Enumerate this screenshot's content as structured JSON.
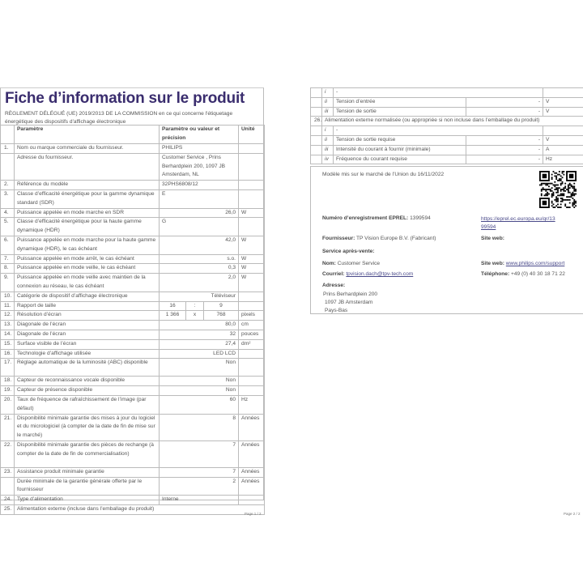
{
  "page1": {
    "title": "Fiche d’information sur le produit",
    "subtitle": "RÈGLEMENT DÉLÉGUÉ (UE) 2019/2013 DE LA COMMISSION en ce qui concerne l'étiquetage énergétique des dispositifs d'affichage électronique",
    "header": {
      "param": "Paramètre",
      "value": "Paramètre ou valeur et précision",
      "unit": "Unité"
    },
    "rows": [
      {
        "n": "1.",
        "p": "Nom ou marque commerciale du fournisseur.",
        "v": "PHILIPS",
        "u": "",
        "align": "l",
        "lines": 1
      },
      {
        "n": "",
        "p": "Adresse du fournisseur.",
        "v": "Customer Service , Prins Berhardplein 200, 1097 JB Amsterdam, NL",
        "u": "",
        "align": "l",
        "lines": 3
      },
      {
        "n": "2.",
        "p": "Référence du modèle",
        "v": "32PHS6808/12",
        "u": "",
        "align": "l",
        "lines": 1
      },
      {
        "n": "3.",
        "p": "Classe d’efficacité énergétique pour la gamme dynamique standard (SDR)",
        "v": "E",
        "u": "",
        "align": "l",
        "lines": 2
      },
      {
        "n": "4.",
        "p": "Puissance appelée en mode marche en SDR",
        "v": "26,0",
        "u": "W",
        "align": "r",
        "lines": 1
      },
      {
        "n": "5.",
        "p": "Classe d’efficacité énergétique pour la haute gamme dynamique (HDR)",
        "v": "G",
        "u": "",
        "align": "l",
        "lines": 2
      },
      {
        "n": "6.",
        "p": "Puissance appelée en mode marche pour la haute gamme dynamique (HDR), le cas échéant",
        "v": "42,0",
        "u": "W",
        "align": "r",
        "lines": 2
      },
      {
        "n": "7.",
        "p": "Puissance appelée en mode arrêt, le cas échéant",
        "v": "s.o.",
        "u": "W",
        "align": "r",
        "lines": 1
      },
      {
        "n": "8.",
        "p": "Puissance appelée en mode veille, le cas échéant",
        "v": "0,3",
        "u": "W",
        "align": "r",
        "lines": 1
      },
      {
        "n": "9.",
        "p": "Puissance appelée en mode veille avec maintien de la connexion au réseau, le cas échéant",
        "v": "2,0",
        "u": "W",
        "align": "r",
        "lines": 2
      },
      {
        "n": "10.",
        "p": "Catégorie de dispositif d’affichage électronique",
        "v": "Téléviseur",
        "u": "",
        "align": "r",
        "lines": 1
      },
      {
        "n": "11.",
        "p": "Rapport de taille",
        "v": [
          "16",
          ":",
          "9"
        ],
        "u": "",
        "align": "c",
        "lines": 1
      },
      {
        "n": "12.",
        "p": "Résolution d’écran",
        "v": [
          "1 366",
          "x",
          "768"
        ],
        "u": "pixels",
        "align": "c",
        "lines": 1
      },
      {
        "n": "13.",
        "p": "Diagonale de l’écran",
        "v": "80,0",
        "u": "cm",
        "align": "r",
        "lines": 1
      },
      {
        "n": "14.",
        "p": "Diagonale de l’écran",
        "v": "32",
        "u": "pouces",
        "align": "r",
        "lines": 1
      },
      {
        "n": "15.",
        "p": "Surface visible de l’écran",
        "v": "27,4",
        "u": "dm²",
        "align": "r",
        "lines": 1
      },
      {
        "n": "16.",
        "p": "Technologie d’affichage utilisée",
        "v": "LED LCD",
        "u": "",
        "align": "r",
        "lines": 1
      },
      {
        "n": "17.",
        "p": "Réglage automatique de la luminosité (ABC) disponible",
        "v": "Non",
        "u": "",
        "align": "r",
        "lines": 2
      },
      {
        "n": "18.",
        "p": "Capteur de reconnaissance vocale disponible",
        "v": "Non",
        "u": "",
        "align": "r",
        "lines": 1
      },
      {
        "n": "19.",
        "p": "Capteur de présence disponible",
        "v": "Non",
        "u": "",
        "align": "r",
        "lines": 1
      },
      {
        "n": "20.",
        "p": "Taux de fréquence de rafraîchissement de l’image (par défaut)",
        "v": "60",
        "u": "Hz",
        "align": "r",
        "lines": 2
      },
      {
        "n": "21.",
        "p": "Disponibilité minimale garantie des mises à jour du logiciel et du micrologiciel (à compter de la date de fin de mise sur le marché)",
        "v": "8",
        "u": "Années",
        "align": "r",
        "lines": 3
      },
      {
        "n": "22.",
        "p": "Disponibilité minimale garantie des pièces de rechange (à compter de la date de fin de commercialisation)",
        "v": "7",
        "u": "Années",
        "align": "r",
        "lines": 3
      },
      {
        "n": "23.",
        "p": "Assistance produit minimale garantie",
        "v": "7",
        "u": "Années",
        "align": "r",
        "lines": 1
      },
      {
        "n": "",
        "p": "Durée minimale de la garantie générale offerte par le fournisseur",
        "v": "2",
        "u": "Années",
        "align": "r",
        "lines": 2
      },
      {
        "n": "24.",
        "p": "Type d’alimentation",
        "v": "Interne",
        "u": "",
        "align": "l",
        "lines": 1
      },
      {
        "n": "25.",
        "p": "Alimentation externe (incluse dans l’emballage du produit)",
        "full": true,
        "lines": 1
      }
    ],
    "page_label": "Page 1 / 2"
  },
  "page2": {
    "rows": [
      {
        "n": "",
        "r": "i",
        "p": "-",
        "v": "",
        "u": "",
        "merged": true
      },
      {
        "n": "",
        "r": "ii",
        "p": "Tension d’entrée",
        "v": "-",
        "u": "V"
      },
      {
        "n": "",
        "r": "iii",
        "p": "Tension de sortie",
        "v": "-",
        "u": "V"
      },
      {
        "n": "26.",
        "full": "Alimentation externe normalisée (ou appropriée si non incluse dans l’emballage du produit)"
      },
      {
        "n": "",
        "r": "i",
        "p": "-",
        "v": "",
        "u": "",
        "merged": true
      },
      {
        "n": "",
        "r": "ii",
        "p": "Tension de sortie requise",
        "v": "-",
        "u": "V"
      },
      {
        "n": "",
        "r": "iii",
        "p": "Intensité du courant à fournir (minimale)",
        "v": "-",
        "u": "A"
      },
      {
        "n": "",
        "r": "iv",
        "p": "Fréquence du courant requise",
        "v": "-",
        "u": "Hz"
      }
    ],
    "info": {
      "market_date": "Modèle mis sur le marché de l’Union du 16/11/2022",
      "eprel_label": "Numéro d’enregistrement EPREL:",
      "eprel_value": "1399594",
      "eprel_link_1": "https://eprel.ec.europa.eu/qr/13",
      "eprel_link_2": "99594",
      "supplier_label": "Fournisseur:",
      "supplier_value": "TP Vision Europe B.V. (Fabricant)",
      "website_label": "Site web:",
      "after_sales_label": "Service après-vente:",
      "name_label": "Nom:",
      "name_value": "Customer Service",
      "website2_label": "Site web:",
      "website2_value": "www.philips.com/support",
      "email_label": "Courriel:",
      "email_value": "tpvision.dach@tpv-tech.com",
      "phone_label": "Téléphone:",
      "phone_value": "+49 (0) 40 30 18 71 22",
      "address_label": "Adresse:",
      "address_lines": [
        "Prins Berhardplein 200",
        "1097 JB Amsterdam",
        "Pays-Bas"
      ]
    },
    "page_label": "Page 2 / 2"
  }
}
